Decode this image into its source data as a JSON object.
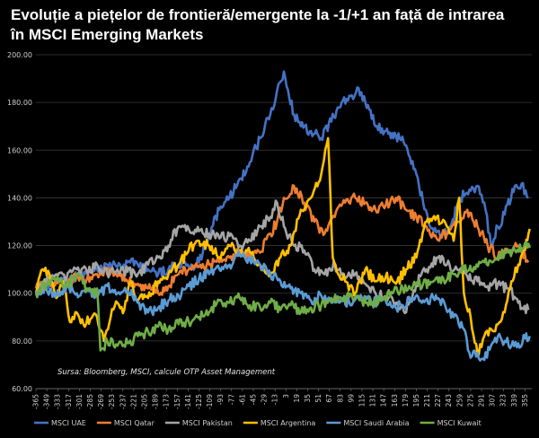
{
  "chart_data": {
    "type": "line",
    "title": "Evoluție a piețelor de frontieră/emergente la -1/+1 an față de intrarea în MSCI Emerging Markets",
    "source": "Sursa: Bloomberg, MSCI, calcule OTP Asset Management",
    "xlabel": "",
    "ylabel": "",
    "xlim": [
      -365,
      365
    ],
    "ylim": [
      60,
      200
    ],
    "y_ticks": [
      "60.00",
      "80.00",
      "100.00",
      "120.00",
      "140.00",
      "160.00",
      "180.00",
      "200.00"
    ],
    "x_ticks": [
      "-365",
      "-349",
      "-333",
      "-317",
      "-301",
      "-285",
      "-269",
      "-253",
      "-237",
      "-221",
      "-205",
      "-189",
      "-173",
      "-157",
      "-141",
      "-125",
      "-109",
      "-93",
      "-77",
      "-61",
      "-45",
      "-29",
      "-13",
      "3",
      "19",
      "35",
      "51",
      "67",
      "83",
      "99",
      "115",
      "131",
      "147",
      "163",
      "179",
      "195",
      "211",
      "227",
      "243",
      "259",
      "275",
      "291",
      "307",
      "323",
      "339",
      "355"
    ],
    "grid": true,
    "legend_position": "bottom",
    "series": [
      {
        "name": "MSCI UAE",
        "color": "#4472C4",
        "x": [
          -365,
          -350,
          -335,
          -320,
          -305,
          -290,
          -275,
          -260,
          -245,
          -230,
          -215,
          -200,
          -185,
          -170,
          -155,
          -140,
          -125,
          -110,
          -95,
          -80,
          -65,
          -50,
          -35,
          -20,
          -10,
          0,
          8,
          15,
          25,
          40,
          55,
          70,
          85,
          100,
          110,
          120,
          135,
          150,
          165,
          180,
          195,
          205,
          215,
          230,
          245,
          260,
          275,
          285,
          295,
          305,
          315,
          325,
          340,
          350,
          360
        ],
        "values": [
          100,
          103,
          105,
          104,
          107,
          108,
          110,
          112,
          111,
          113,
          112,
          110,
          108,
          110,
          112,
          111,
          113,
          125,
          135,
          140,
          148,
          155,
          165,
          175,
          185,
          193,
          182,
          175,
          170,
          168,
          165,
          172,
          180,
          183,
          186,
          180,
          170,
          168,
          166,
          162,
          150,
          138,
          128,
          124,
          128,
          140,
          143,
          145,
          138,
          120,
          128,
          133,
          145,
          146,
          140
        ]
      },
      {
        "name": "MSCI Qatar",
        "color": "#ED7D31",
        "x": [
          -365,
          -350,
          -335,
          -320,
          -305,
          -290,
          -275,
          -260,
          -245,
          -230,
          -215,
          -200,
          -185,
          -170,
          -155,
          -140,
          -125,
          -110,
          -95,
          -80,
          -65,
          -50,
          -35,
          -20,
          -10,
          0,
          15,
          30,
          45,
          60,
          75,
          90,
          105,
          120,
          135,
          150,
          165,
          180,
          195,
          210,
          225,
          240,
          255,
          270,
          285,
          300,
          315,
          330,
          345,
          360
        ],
        "values": [
          102,
          104,
          105,
          103,
          107,
          106,
          108,
          110,
          107,
          105,
          104,
          102,
          100,
          103,
          108,
          110,
          111,
          112,
          113,
          115,
          118,
          115,
          117,
          125,
          130,
          140,
          145,
          138,
          130,
          125,
          132,
          138,
          140,
          138,
          135,
          137,
          140,
          135,
          132,
          128,
          123,
          125,
          130,
          135,
          128,
          120,
          115,
          118,
          120,
          113
        ]
      },
      {
        "name": "MSCI Pakistan",
        "color": "#A5A5A5",
        "x": [
          -365,
          -350,
          -335,
          -320,
          -305,
          -290,
          -275,
          -260,
          -245,
          -230,
          -215,
          -200,
          -185,
          -170,
          -155,
          -140,
          -125,
          -110,
          -95,
          -80,
          -65,
          -50,
          -35,
          -20,
          -10,
          0,
          15,
          30,
          45,
          60,
          75,
          90,
          105,
          120,
          135,
          150,
          165,
          180,
          195,
          210,
          225,
          240,
          255,
          270,
          285,
          300,
          315,
          330,
          345,
          360
        ],
        "values": [
          100,
          105,
          108,
          106,
          110,
          109,
          112,
          108,
          110,
          109,
          108,
          112,
          115,
          120,
          128,
          127,
          126,
          125,
          123,
          124,
          120,
          122,
          128,
          132,
          138,
          128,
          120,
          118,
          110,
          108,
          112,
          106,
          108,
          104,
          100,
          98,
          96,
          92,
          104,
          110,
          115,
          112,
          110,
          107,
          105,
          103,
          104,
          102,
          96,
          93
        ]
      },
      {
        "name": "MSCI Argentina",
        "color": "#FFC000",
        "x": [
          -365,
          -355,
          -345,
          -335,
          -325,
          -315,
          -305,
          -295,
          -285,
          -275,
          -265,
          -255,
          -245,
          -235,
          -225,
          -215,
          -200,
          -185,
          -170,
          -155,
          -140,
          -125,
          -110,
          -95,
          -80,
          -65,
          -50,
          -35,
          -20,
          -5,
          10,
          25,
          40,
          55,
          65,
          72,
          80,
          90,
          105,
          120,
          135,
          150,
          165,
          180,
          195,
          210,
          225,
          240,
          250,
          258,
          265,
          275,
          285,
          295,
          305,
          315,
          325,
          335,
          345,
          355,
          362
        ],
        "values": [
          100,
          110,
          108,
          98,
          105,
          88,
          92,
          87,
          89,
          90,
          80,
          90,
          96,
          93,
          105,
          97,
          98,
          105,
          108,
          112,
          118,
          122,
          120,
          115,
          120,
          118,
          117,
          112,
          108,
          115,
          120,
          135,
          140,
          150,
          165,
          115,
          108,
          105,
          100,
          110,
          105,
          107,
          104,
          110,
          115,
          130,
          132,
          128,
          122,
          140,
          100,
          90,
          75,
          82,
          85,
          87,
          92,
          105,
          112,
          118,
          127
        ]
      },
      {
        "name": "MSCI Saudi Arabia",
        "color": "#5B9BD5",
        "x": [
          -365,
          -350,
          -335,
          -320,
          -305,
          -290,
          -275,
          -260,
          -245,
          -230,
          -215,
          -200,
          -185,
          -170,
          -155,
          -140,
          -125,
          -110,
          -95,
          -80,
          -65,
          -50,
          -35,
          -20,
          -5,
          10,
          25,
          40,
          55,
          70,
          85,
          100,
          115,
          130,
          145,
          160,
          175,
          190,
          205,
          220,
          235,
          250,
          265,
          275,
          285,
          295,
          305,
          315,
          325,
          335,
          345,
          355,
          362
        ],
        "values": [
          100,
          102,
          99,
          103,
          100,
          101,
          99,
          103,
          100,
          101,
          96,
          92,
          94,
          97,
          99,
          103,
          106,
          108,
          110,
          112,
          116,
          114,
          112,
          108,
          105,
          102,
          100,
          97,
          99,
          96,
          98,
          95,
          98,
          96,
          97,
          94,
          95,
          98,
          97,
          98,
          97,
          90,
          85,
          73,
          75,
          72,
          78,
          82,
          80,
          78,
          79,
          81,
          82
        ]
      },
      {
        "name": "MSCI Kuwait",
        "color": "#70AD47",
        "x": [
          -365,
          -350,
          -335,
          -320,
          -305,
          -290,
          -280,
          -275,
          -270,
          -260,
          -245,
          -230,
          -215,
          -200,
          -185,
          -170,
          -155,
          -140,
          -125,
          -110,
          -95,
          -80,
          -65,
          -50,
          -35,
          -20,
          -5,
          10,
          25,
          40,
          55,
          70,
          85,
          100,
          115,
          130,
          145,
          160,
          175,
          190,
          205,
          220,
          235,
          250,
          265,
          280,
          295,
          310,
          325,
          340,
          355,
          362
        ],
        "values": [
          100,
          104,
          106,
          103,
          108,
          102,
          99,
          102,
          76,
          80,
          78,
          79,
          82,
          84,
          86,
          85,
          87,
          88,
          90,
          92,
          97,
          96,
          98,
          95,
          94,
          96,
          93,
          95,
          92,
          94,
          95,
          98,
          97,
          99,
          97,
          96,
          98,
          100,
          102,
          103,
          104,
          105,
          106,
          108,
          110,
          111,
          113,
          114,
          117,
          118,
          121,
          119
        ]
      }
    ]
  }
}
